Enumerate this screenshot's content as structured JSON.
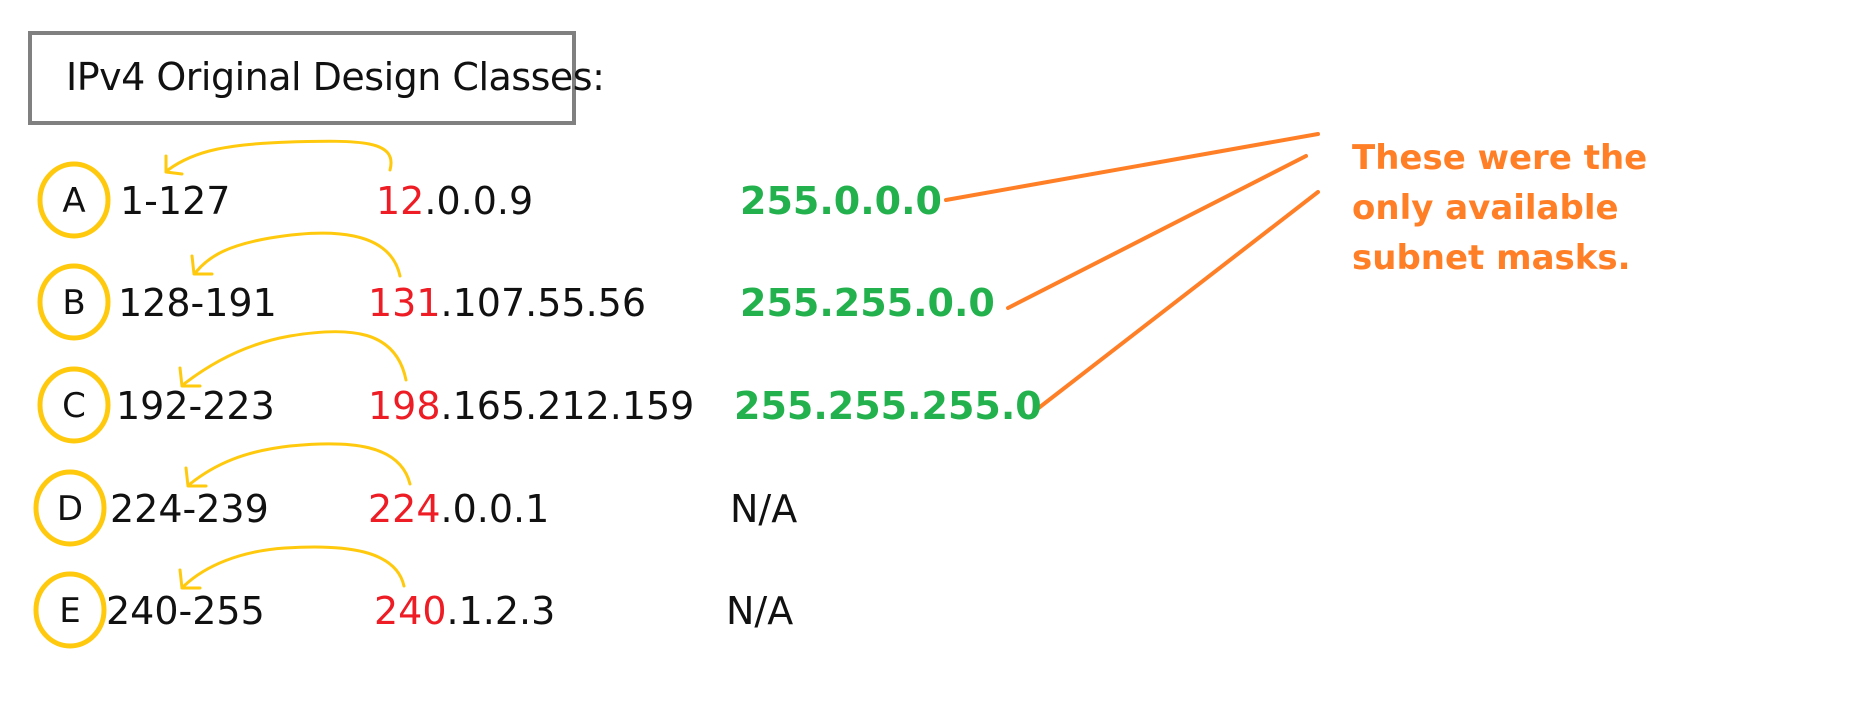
{
  "title": "IPv4 Original Design Classes:",
  "classes": [
    {
      "letter": "A",
      "range": "1-127",
      "example_first": "12",
      "example_rest": ".0.0.9",
      "mask": "255.0.0.0"
    },
    {
      "letter": "B",
      "range": "128-191",
      "example_first": "131",
      "example_rest": ".107.55.56",
      "mask": "255.255.0.0"
    },
    {
      "letter": "C",
      "range": "192-223",
      "example_first": "198",
      "example_rest": ".165.212.159",
      "mask": "255.255.255.0"
    },
    {
      "letter": "D",
      "range": "224-239",
      "example_first": "224",
      "example_rest": ".0.0.1",
      "mask": "N/A"
    },
    {
      "letter": "E",
      "range": "240-255",
      "example_first": "240",
      "example_rest": ".1.2.3",
      "mask": "N/A"
    }
  ],
  "note": {
    "lines": [
      "These were the",
      "only available",
      "subnet masks."
    ]
  },
  "colors": {
    "first_octet": "#ee1c24",
    "mask": "#22b14c",
    "note": "#ff7f27",
    "circle": "#ffc90e",
    "arrow": "#ffc90e",
    "title_border": "#808080"
  }
}
